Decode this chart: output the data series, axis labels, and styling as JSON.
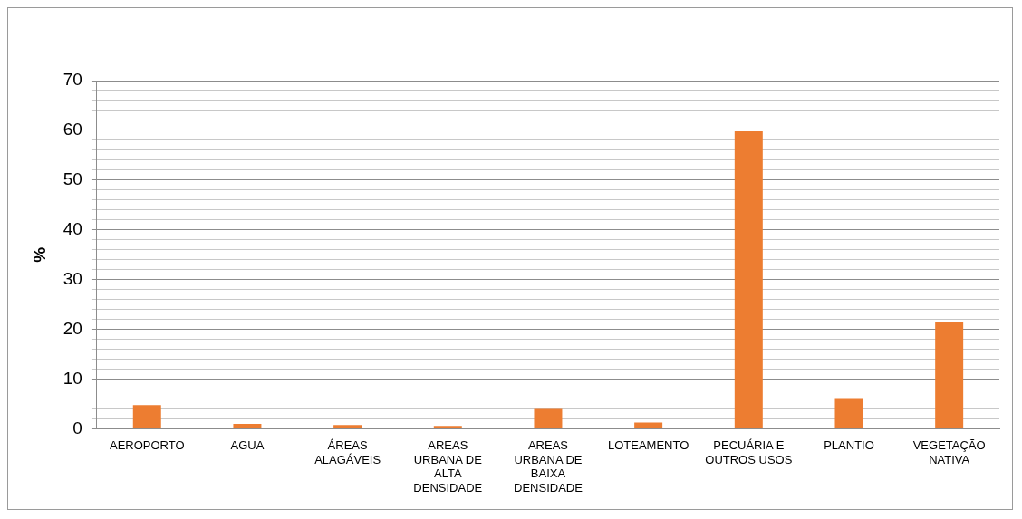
{
  "chart_data": {
    "type": "bar",
    "ylabel": "%",
    "categories": [
      "AEROPORTO",
      "AGUA",
      "ÁREAS ALAGÁVEIS",
      "AREAS URBANA DE ALTA DENSIDADE",
      "AREAS URBANA DE BAIXA DENSIDADE",
      "LOTEAMENTO",
      "PECUÁRIA E OUTROS USOS",
      "PLANTIO",
      "VEGETAÇÃO NATIVA"
    ],
    "values": [
      4.8,
      1.0,
      0.8,
      0.6,
      4.0,
      1.3,
      59.8,
      6.2,
      21.5
    ],
    "color": "#ed7d31",
    "ylim": [
      0,
      70
    ],
    "yticks": [
      0,
      {
        "value": 2,
        "label": null
      },
      {
        "value": 4,
        "label": null
      },
      {
        "value": 6,
        "label": null
      },
      {
        "value": 8,
        "label": null
      },
      10,
      {
        "value": 12,
        "label": null
      },
      {
        "value": 14,
        "label": null
      },
      {
        "value": 16,
        "label": null
      },
      {
        "value": 18,
        "label": null
      },
      20,
      {
        "value": 22,
        "label": null
      },
      {
        "value": 24,
        "label": null
      },
      {
        "value": 26,
        "label": null
      },
      {
        "value": 28,
        "label": null
      },
      30,
      {
        "value": 32,
        "label": null
      },
      {
        "value": 34,
        "label": null
      },
      {
        "value": 36,
        "label": null
      },
      {
        "value": 38,
        "label": null
      },
      40,
      {
        "value": 42,
        "label": null
      },
      {
        "value": 44,
        "label": null
      },
      {
        "value": 46,
        "label": null
      },
      {
        "value": 48,
        "label": null
      },
      50,
      {
        "value": 52,
        "label": null
      },
      {
        "value": 54,
        "label": null
      },
      {
        "value": 56,
        "label": null
      },
      {
        "value": 58,
        "label": null
      },
      60,
      {
        "value": 62,
        "label": null
      },
      {
        "value": 64,
        "label": null
      },
      {
        "value": 66,
        "label": null
      },
      {
        "value": 68,
        "label": null
      },
      70
    ],
    "grid": true,
    "legend": false
  }
}
